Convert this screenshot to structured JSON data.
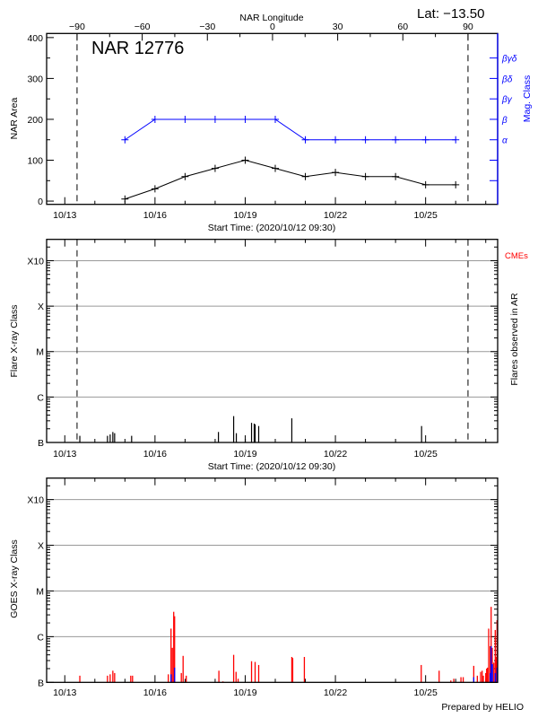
{
  "header": {
    "lat_label": "Lat: −13.50",
    "region_title": "NAR 12776",
    "longitude_axis_label": "NAR Longitude",
    "start_time_label": "Start Time: (2020/10/12 09:30)",
    "footer": "Prepared by HELIO"
  },
  "colors": {
    "area": "#000000",
    "mag_class": "#0000ff",
    "goes_primary": "#ff0000",
    "goes_secondary": "#0000ff",
    "cme": "#ff0000",
    "grid": "#999999"
  },
  "chart_data": [
    {
      "type": "line",
      "ylabel": "NAR Area",
      "y2label": "Mag. Class",
      "xlabel": "Start Time: (2020/10/12 09:30)",
      "xlim": [
        "2020-10-12T09:30",
        "2020-10-27T09:30"
      ],
      "ylim": [
        -8,
        410
      ],
      "yticks": [
        0,
        100,
        200,
        300,
        400
      ],
      "xtick_labels": [
        "10/13",
        "10/16",
        "10/19",
        "10/22",
        "10/25"
      ],
      "top_axis": {
        "label": "NAR Longitude",
        "ticks": [
          -90,
          -60,
          -30,
          0,
          30,
          60,
          90
        ]
      },
      "limb_crossings": [
        "2020-10-13T09:47",
        "2020-10-26T09:50"
      ],
      "mag_class_levels": [
        {
          "label": "α",
          "value": 150
        },
        {
          "label": "β",
          "value": 200
        },
        {
          "label": "βγ",
          "value": 250
        },
        {
          "label": "βδ",
          "value": 300
        },
        {
          "label": "βγδ",
          "value": 350
        }
      ],
      "mag_class_unlabeled_ticks": [
        50,
        100
      ],
      "x": [
        "2020-10-15T00:00",
        "2020-10-16T00:00",
        "2020-10-17T00:00",
        "2020-10-18T00:00",
        "2020-10-19T00:00",
        "2020-10-20T00:00",
        "2020-10-21T00:00",
        "2020-10-22T00:00",
        "2020-10-23T00:00",
        "2020-10-24T00:00",
        "2020-10-25T00:00",
        "2020-10-26T00:00"
      ],
      "series": [
        {
          "values": [
            5,
            30,
            60,
            80,
            100,
            80,
            60,
            70,
            60,
            60,
            40,
            40
          ],
          "color": "#000000"
        },
        {
          "axis": "mag_class",
          "values": [
            "α",
            "β",
            "β",
            "β",
            "β",
            "β",
            "α",
            "α",
            "α",
            "α",
            "α",
            "α"
          ],
          "color": "#0000ff"
        }
      ]
    },
    {
      "type": "bar",
      "ylabel": "Flare X-ray Class",
      "y2label": "Flares observed in AR",
      "legend": "CMEs",
      "xlabel": "Start Time: (2020/10/12 09:30)",
      "xlim": [
        "2020-10-12T09:30",
        "2020-10-27T09:30"
      ],
      "yscale": "log",
      "ylim": [
        1e-07,
        0.00295
      ],
      "ytick_labels": [
        "B",
        "C",
        "M",
        "X",
        "X10"
      ],
      "grid": true,
      "xtick_labels": [
        "10/13",
        "10/16",
        "10/19",
        "10/22",
        "10/25"
      ],
      "limb_crossings": [
        "2020-10-13T09:47",
        "2020-10-26T09:50"
      ],
      "flares": [
        [
          "2020-10-13T12:00",
          "B1.4"
        ],
        [
          "2020-10-14T10:04",
          "B1.4"
        ],
        [
          "2020-10-14T12:13",
          "B1.5"
        ],
        [
          "2020-10-14T14:21",
          "B1.7"
        ],
        [
          "2020-10-14T15:47",
          "B1.6"
        ],
        [
          "2020-10-15T05:21",
          "B1.4"
        ],
        [
          "2020-10-18T02:38",
          "B1.7"
        ],
        [
          "2020-10-18T14:47",
          "B3.8"
        ],
        [
          "2020-10-18T16:55",
          "B1.6"
        ],
        [
          "2020-10-19T00:04",
          "B1.2"
        ],
        [
          "2020-10-19T05:04",
          "B2.7"
        ],
        [
          "2020-10-19T07:12",
          "B2.6"
        ],
        [
          "2020-10-19T07:55",
          "B2.5"
        ],
        [
          "2020-10-19T10:46",
          "B2.3"
        ],
        [
          "2020-10-20T13:12",
          "B3.4"
        ],
        [
          "2020-10-24T20:47",
          "B2.3"
        ]
      ]
    },
    {
      "type": "bar",
      "ylabel": "GOES X-ray Class",
      "yscale": "log",
      "ylim": [
        1e-07,
        0.00295
      ],
      "ytick_labels": [
        "B",
        "C",
        "M",
        "X",
        "X10"
      ],
      "grid": true,
      "xlim": [
        "2020-10-12T09:30",
        "2020-10-27T09:30"
      ],
      "xtick_labels": [
        "10/13",
        "10/16",
        "10/19",
        "10/22",
        "10/25"
      ],
      "series": [
        {
          "color": "#ff0000",
          "values": [
            [
              "2020-10-13T12:00",
              "B1.4"
            ],
            [
              "2020-10-14T10:04",
              "B1.4"
            ],
            [
              "2020-10-14T12:13",
              "B1.5"
            ],
            [
              "2020-10-14T14:21",
              "B1.8"
            ],
            [
              "2020-10-14T15:47",
              "B1.6"
            ],
            [
              "2020-10-15T04:38",
              "B1.4"
            ],
            [
              "2020-10-15T06:04",
              "B1.4"
            ],
            [
              "2020-10-16T10:38",
              "B1.5"
            ],
            [
              "2020-10-16T12:47",
              "C1.5"
            ],
            [
              "2020-10-16T13:51",
              "B5.7"
            ],
            [
              "2020-10-16T14:56",
              "C3.5"
            ],
            [
              "2020-10-16T15:39",
              "C2.8"
            ],
            [
              "2020-10-16T21:00",
              "B1.6"
            ],
            [
              "2020-10-16T22:26",
              "B3.8"
            ],
            [
              "2020-10-17T00:56",
              "B1.4"
            ],
            [
              "2020-10-18T03:00",
              "B1.8"
            ],
            [
              "2020-10-18T06:13",
              "B1.05"
            ],
            [
              "2020-10-18T14:47",
              "B4.0"
            ],
            [
              "2020-10-18T16:42",
              "B1.7"
            ],
            [
              "2020-10-18T18:21",
              "B1.2"
            ],
            [
              "2020-10-19T05:04",
              "B2.9"
            ],
            [
              "2020-10-19T07:55",
              "B2.8"
            ],
            [
              "2020-10-19T10:46",
              "B2.4"
            ],
            [
              "2020-10-20T13:12",
              "B3.6"
            ],
            [
              "2020-10-20T13:55",
              "B3.4"
            ],
            [
              "2020-10-20T23:13",
              "B3.6"
            ],
            [
              "2020-10-24T20:30",
              "B2.4"
            ],
            [
              "2020-10-25T10:47",
              "B1.8"
            ],
            [
              "2020-10-25T20:08",
              "B1.1"
            ],
            [
              "2020-10-25T22:30",
              "B1.2"
            ],
            [
              "2020-10-26T04:13",
              "B1.3"
            ],
            [
              "2020-10-26T06:00",
              "B1.3"
            ],
            [
              "2020-10-26T14:25",
              "B2.3"
            ],
            [
              "2020-10-26T17:17",
              "B1.4"
            ],
            [
              "2020-10-26T19:55",
              "B1.7"
            ],
            [
              "2020-10-26T21:08",
              "B1.8"
            ],
            [
              "2020-10-26T22:05",
              "B1.4"
            ],
            [
              "2020-10-27T00:00",
              "B1.6"
            ],
            [
              "2020-10-27T00:43",
              "B2.0"
            ],
            [
              "2020-10-27T01:26",
              "B2.1"
            ],
            [
              "2020-10-27T02:21",
              "C1.5"
            ],
            [
              "2020-10-27T03:35",
              "B6.2"
            ],
            [
              "2020-10-27T04:18",
              "C4.5"
            ],
            [
              "2020-10-27T05:12",
              "B5.7"
            ],
            [
              "2020-10-27T06:26",
              "B2.7"
            ],
            [
              "2020-10-27T07:34",
              "C1.4"
            ],
            [
              "2020-10-27T08:17",
              "B3.6"
            ],
            [
              "2020-10-27T09:00",
              "C2.3"
            ]
          ]
        },
        {
          "color": "#0000ff",
          "values": [
            [
              "2020-10-16T12:47",
              "B1.5"
            ],
            [
              "2020-10-16T15:39",
              "B2.1"
            ],
            [
              "2020-10-26T14:25",
              "B1.3"
            ],
            [
              "2020-10-27T03:35",
              "B1.6"
            ],
            [
              "2020-10-27T04:18",
              "B6.2"
            ],
            [
              "2020-10-27T05:20",
              "B2.5"
            ],
            [
              "2020-10-27T07:34",
              "B1.6"
            ],
            [
              "2020-10-27T09:00",
              "B2.1"
            ]
          ]
        }
      ]
    }
  ]
}
